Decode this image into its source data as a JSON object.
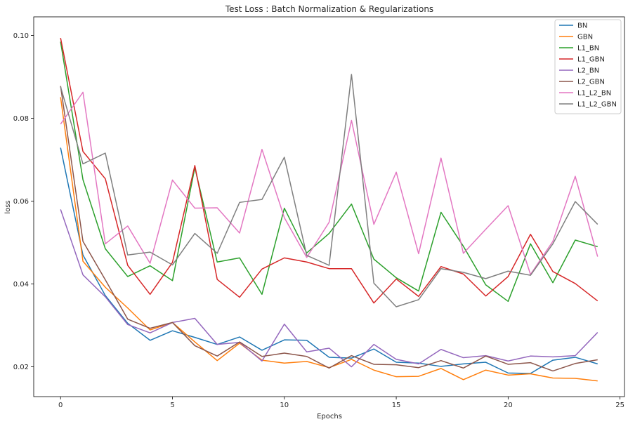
{
  "chart_data": {
    "type": "line",
    "title": "Test Loss : Batch Normalization & Regularizations",
    "xlabel": "Epochs",
    "ylabel": "loss",
    "xlim": [
      -1.2,
      25.2
    ],
    "ylim": [
      0.0128,
      0.1045
    ],
    "xticks": [
      0,
      5,
      10,
      15,
      20,
      25
    ],
    "yticks": [
      0.02,
      0.04,
      0.06,
      0.08,
      0.1
    ],
    "ytick_labels": [
      "0.02",
      "0.04",
      "0.06",
      "0.08",
      "0.10"
    ],
    "grid": false,
    "legend_position": "top-right",
    "x": [
      0,
      1,
      2,
      3,
      4,
      5,
      6,
      7,
      8,
      9,
      10,
      11,
      12,
      13,
      14,
      15,
      16,
      17,
      18,
      19,
      20,
      21,
      22,
      23,
      24
    ],
    "series": [
      {
        "name": "BN",
        "color": "#1f77b4",
        "values": [
          0.0729,
          0.047,
          0.0372,
          0.0305,
          0.0264,
          0.0287,
          0.0271,
          0.0254,
          0.0272,
          0.024,
          0.0265,
          0.0264,
          0.0223,
          0.0221,
          0.0243,
          0.0211,
          0.0209,
          0.0201,
          0.0207,
          0.0211,
          0.0185,
          0.0184,
          0.0216,
          0.0223,
          0.0207
        ]
      },
      {
        "name": "GBN",
        "color": "#ff7f0e",
        "values": [
          0.0851,
          0.0455,
          0.0392,
          0.0342,
          0.0289,
          0.0307,
          0.026,
          0.0215,
          0.0257,
          0.0216,
          0.0209,
          0.0213,
          0.0198,
          0.0218,
          0.0192,
          0.0176,
          0.0177,
          0.0196,
          0.0169,
          0.0192,
          0.018,
          0.0183,
          0.0173,
          0.0172,
          0.0166
        ]
      },
      {
        "name": "L1_BN",
        "color": "#2ca02c",
        "values": [
          0.0985,
          0.0652,
          0.0485,
          0.0418,
          0.0444,
          0.0408,
          0.0681,
          0.0453,
          0.0463,
          0.0375,
          0.0583,
          0.0475,
          0.0522,
          0.0593,
          0.046,
          0.0415,
          0.0383,
          0.0573,
          0.0491,
          0.0398,
          0.0358,
          0.0497,
          0.0403,
          0.0506,
          0.049
        ]
      },
      {
        "name": "L1_GBN",
        "color": "#d62728",
        "values": [
          0.0994,
          0.072,
          0.0654,
          0.0445,
          0.0375,
          0.0452,
          0.0686,
          0.0411,
          0.0368,
          0.0436,
          0.0463,
          0.0453,
          0.0437,
          0.0437,
          0.0354,
          0.0412,
          0.037,
          0.0442,
          0.0424,
          0.0371,
          0.0418,
          0.052,
          0.043,
          0.0401,
          0.0359
        ]
      },
      {
        "name": "L2_BN",
        "color": "#9467bd",
        "values": [
          0.058,
          0.0422,
          0.0369,
          0.0302,
          0.0282,
          0.0307,
          0.0317,
          0.0254,
          0.0259,
          0.0214,
          0.0303,
          0.0236,
          0.0245,
          0.02,
          0.0254,
          0.0218,
          0.0207,
          0.0242,
          0.0222,
          0.0227,
          0.0214,
          0.0226,
          0.0224,
          0.0227,
          0.0283
        ]
      },
      {
        "name": "L2_GBN",
        "color": "#8c564b",
        "values": [
          0.0878,
          0.0503,
          0.041,
          0.0315,
          0.0293,
          0.0307,
          0.0251,
          0.0226,
          0.026,
          0.0225,
          0.0233,
          0.0225,
          0.0197,
          0.0227,
          0.0206,
          0.0205,
          0.0198,
          0.0215,
          0.0197,
          0.0226,
          0.0206,
          0.021,
          0.019,
          0.0208,
          0.0217
        ]
      },
      {
        "name": "L1_L2_BN",
        "color": "#e377c2",
        "values": [
          0.0786,
          0.0863,
          0.0497,
          0.054,
          0.045,
          0.0651,
          0.0583,
          0.0584,
          0.0523,
          0.0725,
          0.056,
          0.0464,
          0.0549,
          0.0795,
          0.0544,
          0.067,
          0.0473,
          0.0704,
          0.0474,
          0.0532,
          0.0589,
          0.0423,
          0.0503,
          0.066,
          0.0466
        ]
      },
      {
        "name": "L1_L2_GBN",
        "color": "#7f7f7f",
        "values": [
          0.0876,
          0.069,
          0.0716,
          0.047,
          0.0477,
          0.0446,
          0.0522,
          0.0474,
          0.0597,
          0.0604,
          0.0706,
          0.0469,
          0.0445,
          0.0906,
          0.0402,
          0.0345,
          0.0362,
          0.0437,
          0.0428,
          0.0413,
          0.0431,
          0.0421,
          0.0497,
          0.0599,
          0.0544
        ]
      }
    ]
  }
}
